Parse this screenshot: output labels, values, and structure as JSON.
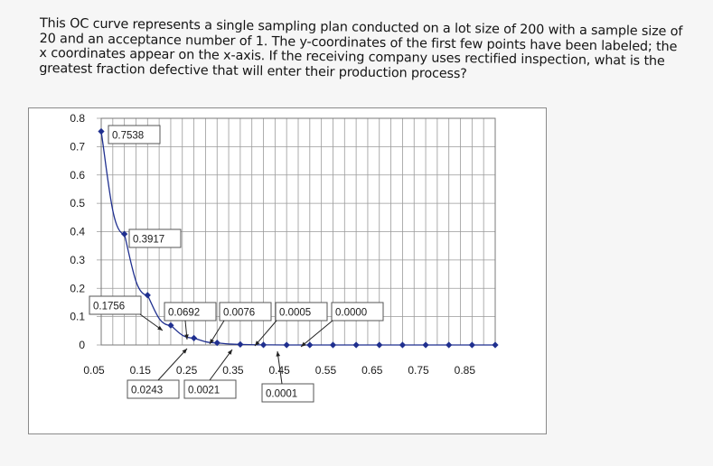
{
  "question": {
    "lines": [
      "This OC curve represents a single sampling plan conducted on a lot size of 200 with a sample size of",
      "20 and an acceptance number of 1. The y-coordinates of the first few points have been labeled; the",
      "x coordinates appear on the x-axis. If the receiving company uses rectified inspection, what is the",
      "greatest fraction defective that will enter their production process?"
    ]
  },
  "chart_data": {
    "type": "line",
    "title": "",
    "xlabel": "",
    "ylabel": "",
    "xlim": [
      0.05,
      0.9
    ],
    "ylim": [
      0,
      0.8
    ],
    "grid": true,
    "y_ticks": [
      "0",
      "0.1",
      "0.2",
      "0.3",
      "0.4",
      "0.5",
      "0.6",
      "0.7",
      "0.8"
    ],
    "x_ticks": [
      "0.05",
      "0.15",
      "0.25",
      "0.35",
      "0.45",
      "0.55",
      "0.65",
      "0.75",
      "0.85"
    ],
    "series": [
      {
        "color": "#1f2f8f",
        "x": [
          0.05,
          0.1,
          0.15,
          0.2,
          0.25,
          0.3,
          0.35,
          0.4,
          0.45,
          0.5,
          0.55,
          0.6,
          0.65,
          0.7,
          0.75,
          0.8,
          0.85,
          0.9
        ],
        "y": [
          0.7538,
          0.3917,
          0.1756,
          0.0692,
          0.0243,
          0.0076,
          0.0021,
          0.0005,
          0.0001,
          0.0,
          0.0,
          0.0,
          0.0,
          0.0,
          0.0,
          0.0,
          0.0,
          0.0
        ]
      }
    ],
    "labels": [
      {
        "text": "0.7538",
        "x": 0.05
      },
      {
        "text": "0.3917",
        "x": 0.1
      },
      {
        "text": "0.1756",
        "x": 0.15
      },
      {
        "text": "0.0692",
        "x": 0.2
      },
      {
        "text": "0.0243",
        "x": 0.25
      },
      {
        "text": "0.0076",
        "x": 0.3
      },
      {
        "text": "0.0021",
        "x": 0.35
      },
      {
        "text": "0.0005",
        "x": 0.4
      },
      {
        "text": "0.0001",
        "x": 0.45
      },
      {
        "text": "0.0000",
        "x": 0.5
      }
    ]
  }
}
